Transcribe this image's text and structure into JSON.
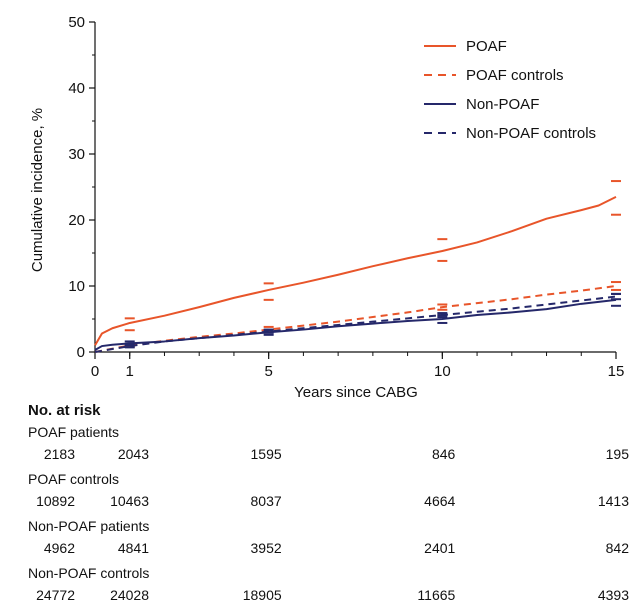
{
  "chart_data": {
    "type": "line",
    "title": "",
    "xlabel": "Years since CABG",
    "ylabel": "Cumulative incidence, %",
    "xlim": [
      0,
      15
    ],
    "ylim": [
      0,
      50
    ],
    "xticks": [
      0,
      1,
      5,
      10,
      15
    ],
    "yticks": [
      0,
      10,
      20,
      30,
      40,
      50
    ],
    "grid": false,
    "legend_position": "top-right",
    "series": [
      {
        "name": "POAF",
        "style": "solid",
        "color": "#E8552A",
        "x": [
          0,
          0.2,
          0.5,
          1,
          2,
          3,
          4,
          5,
          6,
          7,
          8,
          9,
          10,
          11,
          12,
          13,
          14,
          14.5,
          15
        ],
        "y": [
          1,
          2.8,
          3.6,
          4.4,
          5.5,
          6.8,
          8.2,
          9.4,
          10.5,
          11.7,
          13,
          14.2,
          15.3,
          16.6,
          18.3,
          20.2,
          21.5,
          22.2,
          23.5
        ],
        "ci_marks": [
          [
            1,
            3.3,
            5.1
          ],
          [
            5,
            7.9,
            10.4
          ],
          [
            10,
            13.8,
            17.1
          ],
          [
            15,
            20.8,
            25.9
          ]
        ]
      },
      {
        "name": "POAF controls",
        "style": "dashed",
        "color": "#E8552A",
        "x": [
          0,
          1,
          2,
          3,
          4,
          5,
          6,
          7,
          8,
          9,
          10,
          11,
          12,
          13,
          14,
          15
        ],
        "y": [
          0,
          1,
          1.7,
          2.3,
          2.8,
          3.4,
          4,
          4.6,
          5.3,
          6,
          6.8,
          7.4,
          8,
          8.7,
          9.3,
          10
        ],
        "ci_marks": [
          [
            1,
            0.8,
            1.2
          ],
          [
            5,
            3.1,
            3.8
          ],
          [
            10,
            6.4,
            7.2
          ],
          [
            15,
            9.4,
            10.6
          ]
        ]
      },
      {
        "name": "Non-POAF",
        "style": "solid",
        "color": "#25286A",
        "x": [
          0,
          0.2,
          0.5,
          1,
          2,
          3,
          4,
          5,
          6,
          7,
          8,
          9,
          10,
          11,
          12,
          13,
          14,
          15
        ],
        "y": [
          0.3,
          0.9,
          1.1,
          1.3,
          1.6,
          2.1,
          2.5,
          3,
          3.4,
          3.9,
          4.3,
          4.7,
          5,
          5.6,
          6,
          6.5,
          7.3,
          7.9
        ],
        "ci_marks": [
          [
            1,
            1,
            1.6
          ],
          [
            5,
            2.6,
            3.4
          ],
          [
            10,
            4.4,
            5.6
          ],
          [
            15,
            7,
            8.8
          ]
        ]
      },
      {
        "name": "Non-POAF controls",
        "style": "dashed",
        "color": "#25286A",
        "x": [
          0,
          1,
          2,
          3,
          4,
          5,
          6,
          7,
          8,
          9,
          10,
          11,
          12,
          13,
          14,
          15
        ],
        "y": [
          0,
          0.9,
          1.6,
          2.1,
          2.6,
          3.1,
          3.6,
          4.1,
          4.6,
          5.1,
          5.6,
          6.1,
          6.6,
          7.2,
          7.8,
          8.4
        ],
        "ci_marks": [
          [
            1,
            0.7,
            1.1
          ],
          [
            5,
            2.9,
            3.3
          ],
          [
            10,
            5.3,
            5.9
          ],
          [
            15,
            8,
            8.8
          ]
        ]
      }
    ]
  },
  "risk_table": {
    "header": "No. at risk",
    "timepoints": [
      0,
      1,
      5,
      10,
      15
    ],
    "groups": [
      {
        "label": "POAF patients",
        "values": [
          "2183",
          "2043",
          "1595",
          "846",
          "195"
        ]
      },
      {
        "label": "POAF controls",
        "values": [
          "10892",
          "10463",
          "8037",
          "4664",
          "1413"
        ]
      },
      {
        "label": "Non-POAF patients",
        "values": [
          "4962",
          "4841",
          "3952",
          "2401",
          "842"
        ]
      },
      {
        "label": "Non-POAF controls",
        "values": [
          "24772",
          "24028",
          "18905",
          "11665",
          "4393"
        ]
      }
    ]
  }
}
